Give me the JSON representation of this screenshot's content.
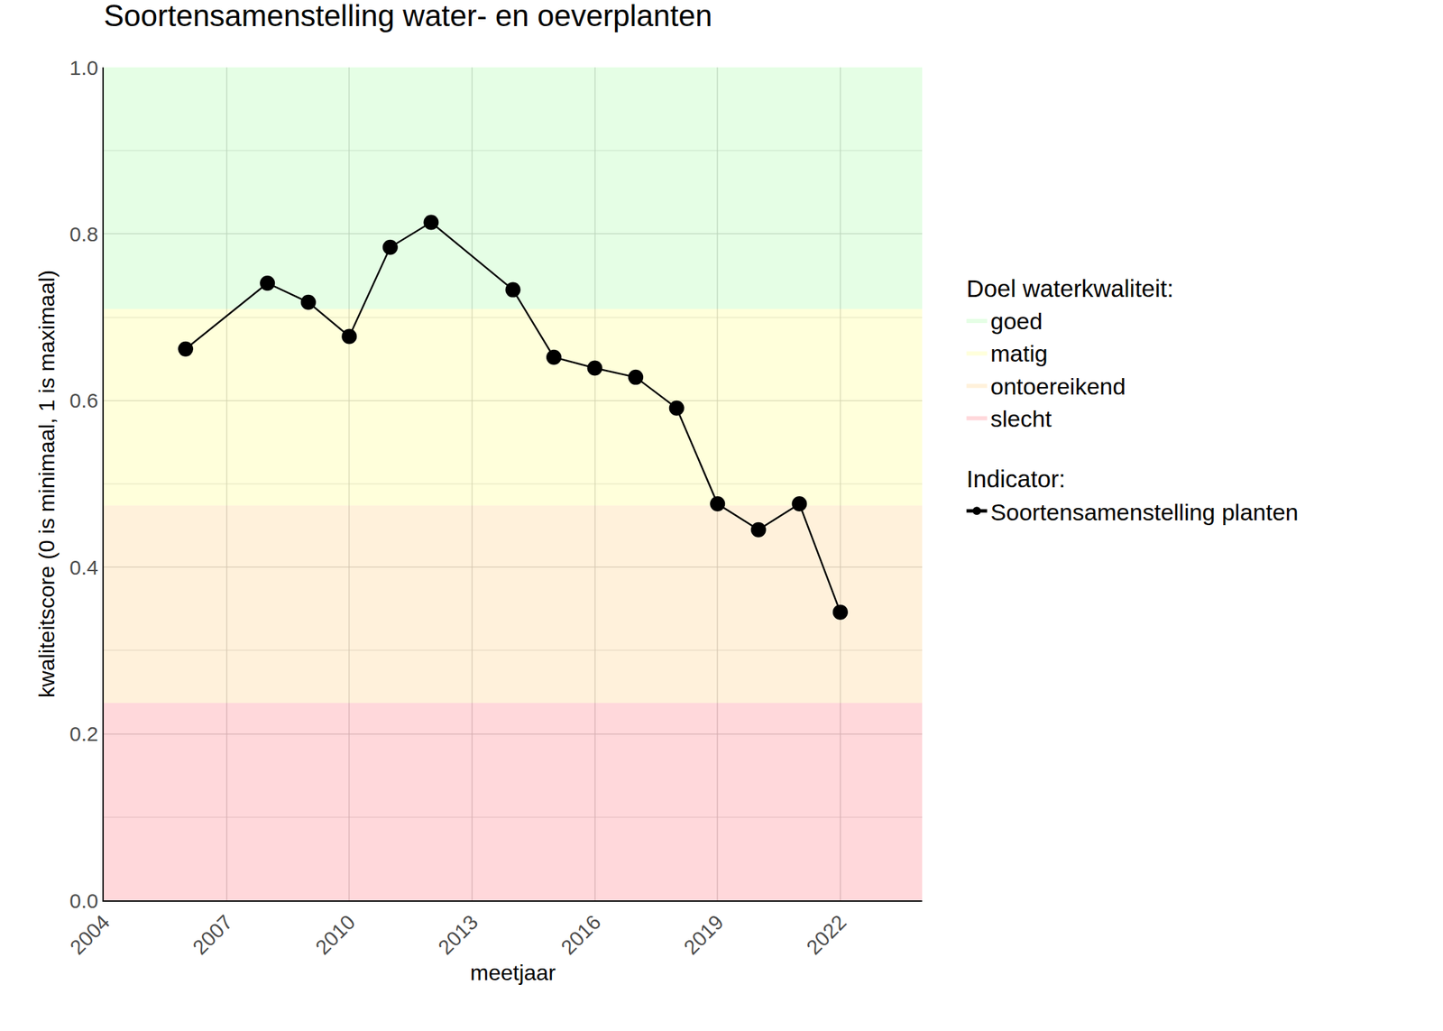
{
  "chart_data": {
    "type": "line",
    "title": "Soortensamenstelling water- en oeverplanten",
    "x_label": "meetjaar",
    "y_label": "kwaliteitscore (0 is minimaal, 1 is maximaal)",
    "x": [
      2006,
      2008,
      2009,
      2010,
      2011,
      2012,
      2014,
      2015,
      2016,
      2017,
      2018,
      2019,
      2020,
      2021,
      2022
    ],
    "series": [
      {
        "name": "Soortensamenstelling planten",
        "color": "#000000",
        "marker": "circle",
        "line_style": "solid",
        "values": [
          0.662,
          0.741,
          0.718,
          0.677,
          0.784,
          0.814,
          0.733,
          0.652,
          0.639,
          0.628,
          0.591,
          0.476,
          0.445,
          0.476,
          0.346
        ]
      }
    ],
    "series_legend_title": "Indicator:",
    "bands_legend_title": "Doel waterkwaliteit:",
    "bands": [
      {
        "name": "goed",
        "from": 0.71,
        "to": 1.0,
        "color": "rgba(152,251,152,0.25)"
      },
      {
        "name": "matig",
        "from": 0.474,
        "to": 0.71,
        "color": "rgba(255,255,110,0.25)"
      },
      {
        "name": "ontoereikend",
        "from": 0.237,
        "to": 0.474,
        "color": "rgba(255,200,110,0.25)"
      },
      {
        "name": "slecht",
        "from": 0.0,
        "to": 0.237,
        "color": "rgba(255,100,110,0.25)"
      }
    ],
    "xlim": [
      2004,
      2024
    ],
    "xticks": [
      2004,
      2007,
      2010,
      2013,
      2016,
      2019,
      2022
    ],
    "ylim": [
      0,
      1
    ],
    "yticks": [
      {
        "value": 0,
        "label": "0.0"
      },
      0.2,
      0.4,
      0.6,
      0.8,
      {
        "value": 1,
        "label": "1.0"
      }
    ],
    "grid": true,
    "legend": "right"
  }
}
